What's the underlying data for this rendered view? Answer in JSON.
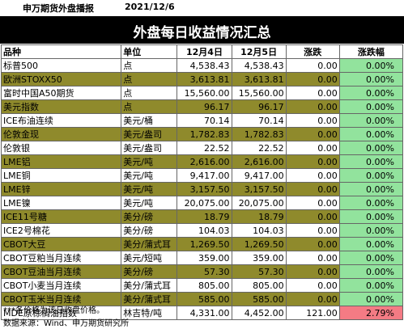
{
  "header": {
    "org": "申万期货外盘播报",
    "date": "2021/12/6"
  },
  "title": "外盘每日收益情况汇总",
  "columns": [
    "品种",
    "单位",
    "12月4日",
    "12月5日",
    "涨跌",
    "涨跌幅"
  ],
  "rows": [
    {
      "name": "标普500",
      "unit": "点",
      "d1": "4,538.43",
      "d2": "4,538.43",
      "chg": "0.00",
      "pct": "0.00%"
    },
    {
      "name": "欧洲STOXX50",
      "unit": "点",
      "d1": "3,613.81",
      "d2": "3,613.81",
      "chg": "0.00",
      "pct": "0.00%"
    },
    {
      "name": "富时中国A50期货",
      "unit": "点",
      "d1": "15,560.00",
      "d2": "15,560.00",
      "chg": "0.00",
      "pct": "0.00%"
    },
    {
      "name": "美元指数",
      "unit": "点",
      "d1": "96.17",
      "d2": "96.17",
      "chg": "0.00",
      "pct": "0.00%"
    },
    {
      "name": "ICE布油连续",
      "unit": "美元/桶",
      "d1": "70.14",
      "d2": "70.14",
      "chg": "0.00",
      "pct": "0.00%"
    },
    {
      "name": "伦敦金现",
      "unit": "美元/盎司",
      "d1": "1,782.83",
      "d2": "1,782.83",
      "chg": "0.00",
      "pct": "0.00%"
    },
    {
      "name": "伦敦银",
      "unit": "美元/盎司",
      "d1": "22.52",
      "d2": "22.52",
      "chg": "0.00",
      "pct": "0.00%"
    },
    {
      "name": "LME铝",
      "unit": "美元/吨",
      "d1": "2,616.00",
      "d2": "2,616.00",
      "chg": "0.00",
      "pct": "0.00%"
    },
    {
      "name": "LME铜",
      "unit": "美元/吨",
      "d1": "9,417.00",
      "d2": "9,417.00",
      "chg": "0.00",
      "pct": "0.00%"
    },
    {
      "name": "LME锌",
      "unit": "美元/吨",
      "d1": "3,157.50",
      "d2": "3,157.50",
      "chg": "0.00",
      "pct": "0.00%"
    },
    {
      "name": "LME镍",
      "unit": "美元/吨",
      "d1": "20,075.00",
      "d2": "20,075.00",
      "chg": "0.00",
      "pct": "0.00%"
    },
    {
      "name": "ICE11号糖",
      "unit": "美分/磅",
      "d1": "18.79",
      "d2": "18.79",
      "chg": "0.00",
      "pct": "0.00%"
    },
    {
      "name": "ICE2号棉花",
      "unit": "美分/磅",
      "d1": "104.03",
      "d2": "104.03",
      "chg": "0.00",
      "pct": "0.00%"
    },
    {
      "name": "CBOT大豆",
      "unit": "美分/蒲式耳",
      "d1": "1,269.50",
      "d2": "1,269.50",
      "chg": "0.00",
      "pct": "0.00%"
    },
    {
      "name": "CBOT豆粕当月连续",
      "unit": "美元/短吨",
      "d1": "359.00",
      "d2": "359.00",
      "chg": "0.00",
      "pct": "0.00%"
    },
    {
      "name": "CBOT豆油当月连续",
      "unit": "美分/磅",
      "d1": "57.30",
      "d2": "57.30",
      "chg": "0.00",
      "pct": "0.00%"
    },
    {
      "name": "CBOT小麦当月连续",
      "unit": "美分/蒲式耳",
      "d1": "805.00",
      "d2": "805.00",
      "chg": "0.00",
      "pct": "0.00%"
    },
    {
      "name": "CBOT玉米当月连续",
      "unit": "美分/蒲式耳",
      "d1": "585.00",
      "d2": "585.00",
      "chg": "0.00",
      "pct": "0.00%"
    },
    {
      "name": "MDE原棕榈油指数",
      "unit": "林吉特/吨",
      "d1": "4,331.00",
      "d2": "4,452.00",
      "chg": "121.00",
      "pct": "2.79%"
    }
  ],
  "footnote": "***各价格为该日收盘价格。",
  "source": "数据来源：Wind、申万期货研究所",
  "colors": {
    "olive": "#8f8a2c",
    "green": "#92e39d",
    "red": "#f47b84",
    "title_bg": "#000000"
  }
}
